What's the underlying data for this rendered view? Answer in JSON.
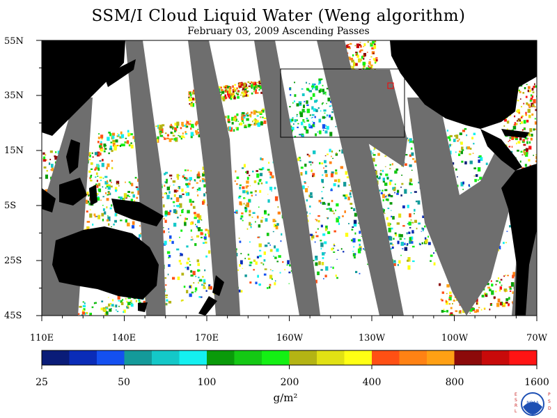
{
  "title": "SSM/I Cloud Liquid Water (Weng algorithm)",
  "subtitle": "February 03, 2009  Ascending Passes",
  "latitude_labels": [
    "55N",
    "35N",
    "15N",
    "5S",
    "25S",
    "45S"
  ],
  "longitude_labels": [
    "110E",
    "140E",
    "170E",
    "160W",
    "130W",
    "100W",
    "70W"
  ],
  "colorbar": {
    "labels": [
      "25",
      "50",
      "100",
      "200",
      "400",
      "800",
      "1600"
    ],
    "unit": "g/m²",
    "colors": [
      "#0a1c78",
      "#0a2cb8",
      "#1450f0",
      "#149a9a",
      "#14c8c8",
      "#14f0f0",
      "#0a9a0a",
      "#14c814",
      "#14f014",
      "#b4b414",
      "#e1e114",
      "#ffff14",
      "#ff5014",
      "#ff8214",
      "#ffa014",
      "#8c0a0a",
      "#c80a0a",
      "#ff1414"
    ]
  },
  "colors": {
    "land": "#000000",
    "no_data_swath": "#6e6e6e",
    "ocean_clear": "#ffffff"
  },
  "logo": {
    "left_letters": "ESRL",
    "right_letters": "PSD",
    "center_text": "NOAA"
  }
}
